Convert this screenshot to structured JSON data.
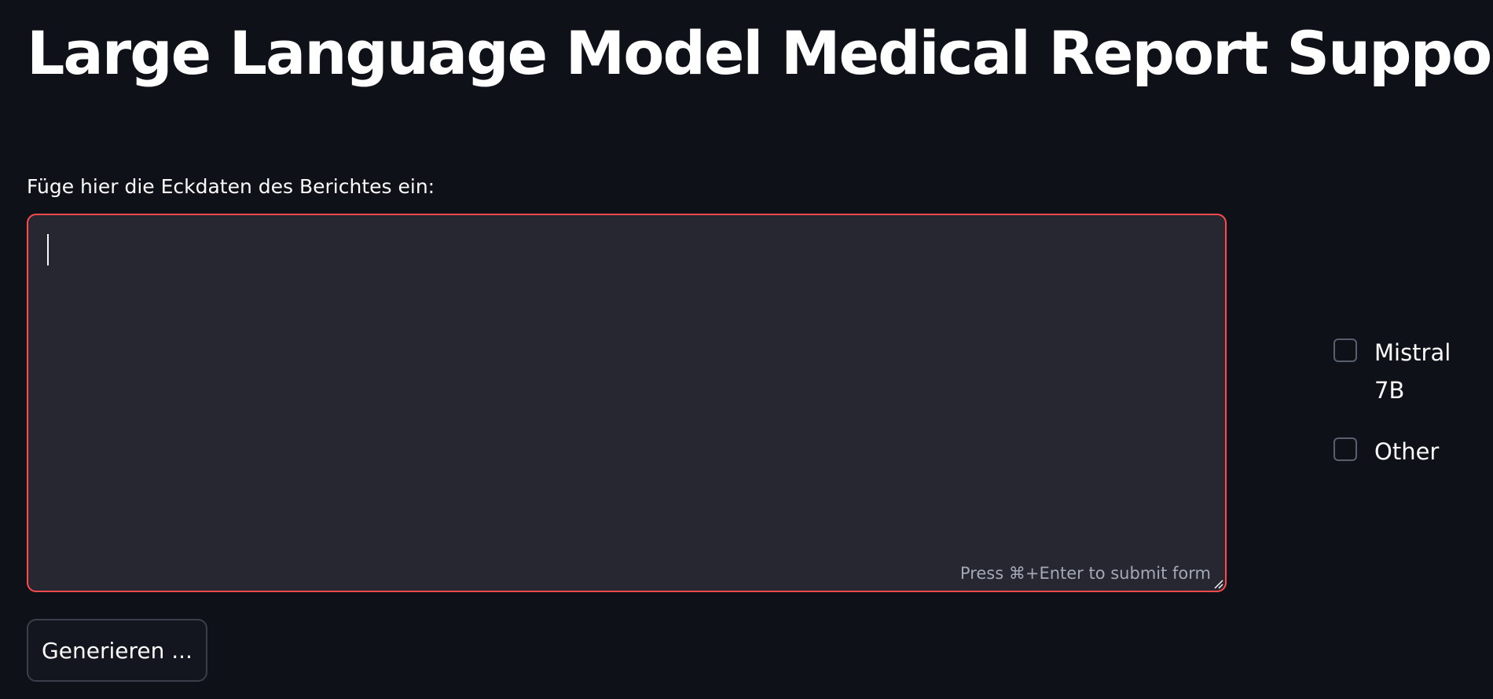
{
  "header": {
    "title": "Large Language Model Medical Report Support"
  },
  "form": {
    "field_label": "Füge hier die Eckdaten des Berichtes ein:",
    "textarea_value": "",
    "submit_hint": "Press ⌘+Enter to submit form",
    "submit_button_label": "Generieren ..."
  },
  "models": {
    "options": [
      {
        "label": "Mistral 7B",
        "checked": false
      },
      {
        "label": "Other",
        "checked": false
      }
    ]
  },
  "colors": {
    "background": "#0e1117",
    "input_background": "#262730",
    "focus_border": "#ff4b4b",
    "text": "#fafafa",
    "hint": "#a3a8b8"
  }
}
